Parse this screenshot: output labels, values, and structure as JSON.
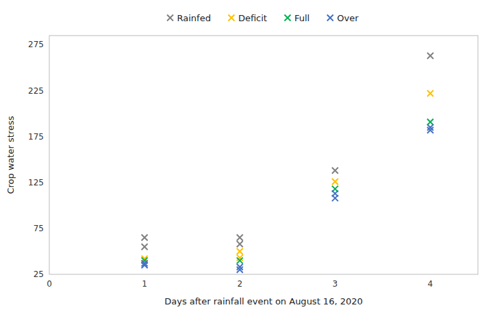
{
  "chart_data": {
    "type": "scatter",
    "xlabel": "Days after rainfall event on August 16, 2020",
    "ylabel": "Crop water stress",
    "xlim": [
      0,
      4.5
    ],
    "ylim": [
      25,
      285
    ],
    "xticks": [
      0,
      1,
      2,
      3,
      4
    ],
    "yticks": [
      25,
      75,
      125,
      175,
      225,
      275
    ],
    "marker": "x",
    "grid": false,
    "legend": "top",
    "series": [
      {
        "name": "Rainfed",
        "color": "#808080",
        "x": [
          1,
          1,
          2,
          2,
          3,
          4
        ],
        "values": [
          55,
          65,
          58,
          65,
          138,
          263
        ]
      },
      {
        "name": "Deficit",
        "color": "#FFC000",
        "x": [
          1,
          2,
          2,
          3,
          4
        ],
        "values": [
          42,
          43,
          50,
          126,
          222
        ]
      },
      {
        "name": "Full",
        "color": "#00B050",
        "x": [
          1,
          2,
          3,
          4
        ],
        "values": [
          40,
          40,
          118,
          191
        ]
      },
      {
        "name": "Over",
        "color": "#4472C4",
        "x": [
          1,
          1,
          2,
          2,
          3,
          3,
          4,
          4
        ],
        "values": [
          35,
          37,
          30,
          33,
          108,
          113,
          182,
          185
        ]
      }
    ]
  }
}
